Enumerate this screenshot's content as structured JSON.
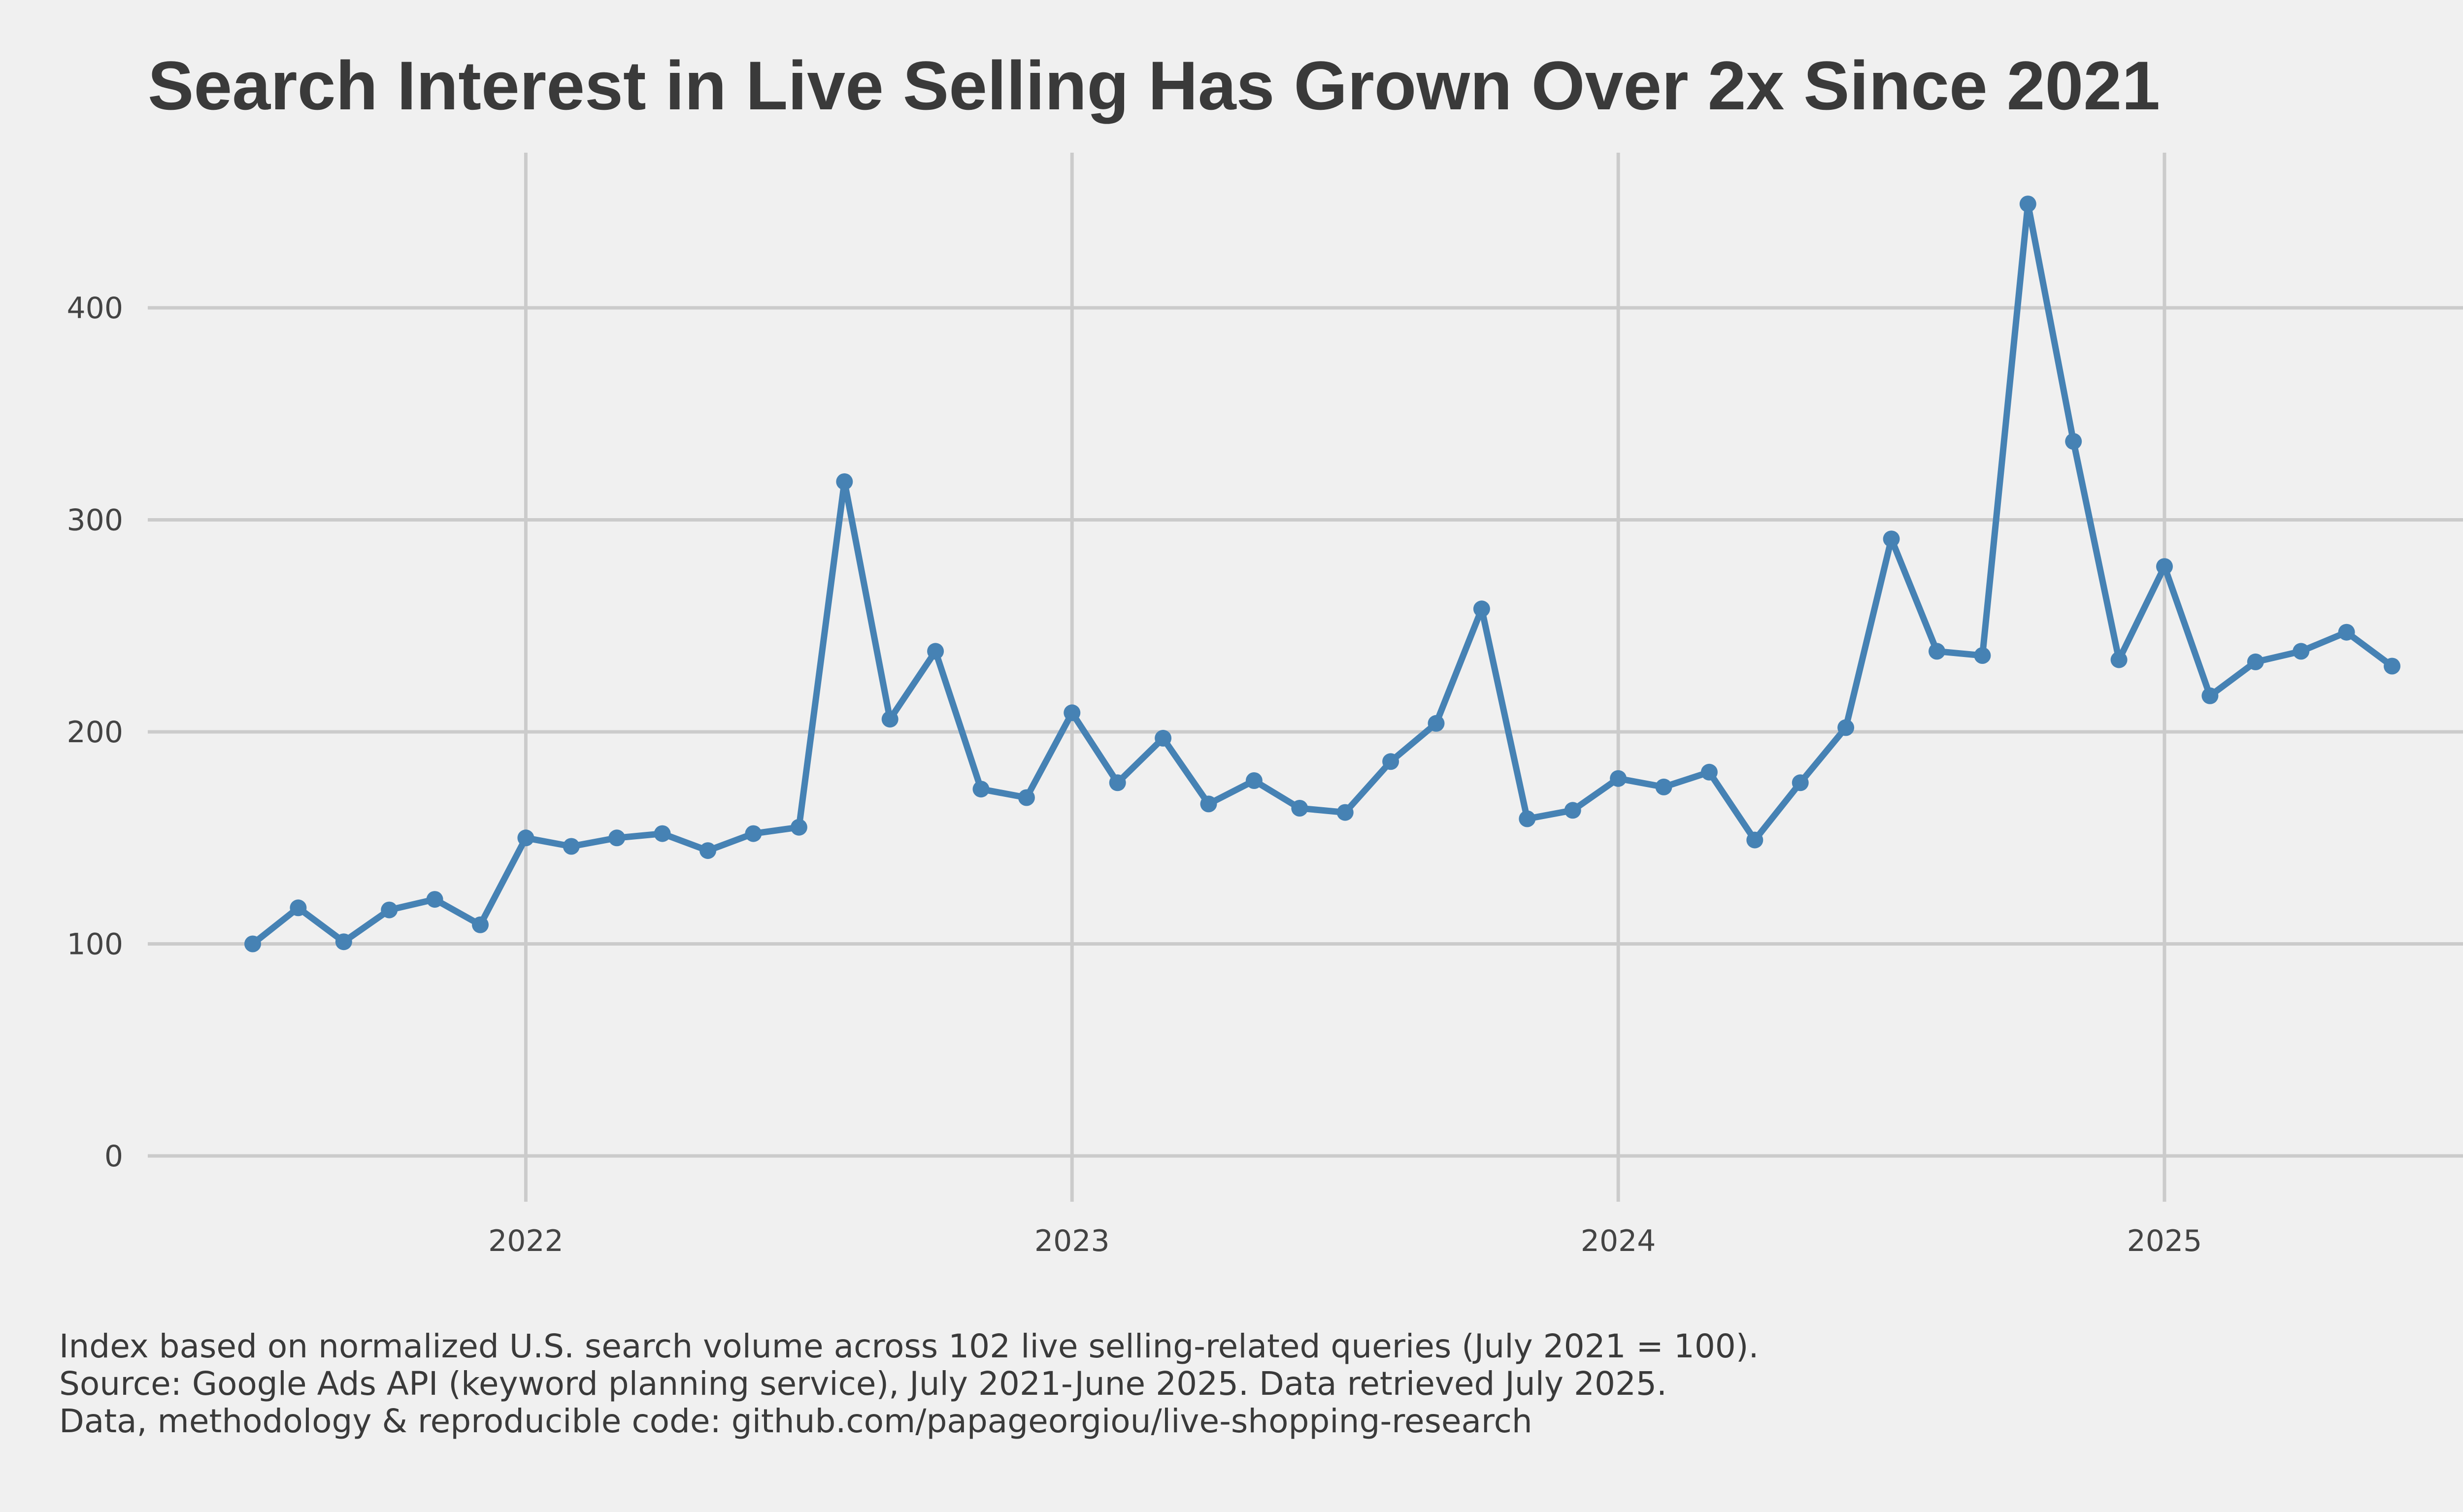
{
  "chart_data": {
    "type": "line",
    "title": "Search Interest in Live Selling Has Grown Over 2x Since 2021",
    "xlabel": "",
    "ylabel": "",
    "ylim": [
      0,
      450
    ],
    "xlim": [
      "2021-07",
      "2025-06"
    ],
    "y_ticks": [
      0,
      100,
      200,
      300,
      400
    ],
    "x_tick_labels": [
      "2022",
      "2023",
      "2024",
      "2025"
    ],
    "x_tick_dates": [
      "2022-01",
      "2023-01",
      "2024-01",
      "2025-01"
    ],
    "grid": true,
    "legend": "none",
    "line_color": "#4682b4",
    "series": [
      {
        "x": [
          "2021-07",
          "2021-08",
          "2021-09",
          "2021-10",
          "2021-11",
          "2021-12",
          "2022-01",
          "2022-02",
          "2022-03",
          "2022-04",
          "2022-05",
          "2022-06",
          "2022-07",
          "2022-08",
          "2022-09",
          "2022-10",
          "2022-11",
          "2022-12",
          "2023-01",
          "2023-02",
          "2023-03",
          "2023-04",
          "2023-05",
          "2023-06",
          "2023-07",
          "2023-08",
          "2023-09",
          "2023-10",
          "2023-11",
          "2023-12",
          "2024-01",
          "2024-02",
          "2024-03",
          "2024-04",
          "2024-05",
          "2024-06",
          "2024-07",
          "2024-08",
          "2024-09",
          "2024-10",
          "2024-11",
          "2024-12",
          "2025-01",
          "2025-02",
          "2025-03",
          "2025-04",
          "2025-05",
          "2025-06"
        ],
        "values": [
          100,
          117,
          101,
          116,
          121,
          109,
          150,
          146,
          150,
          152,
          144,
          152,
          155,
          318,
          206,
          238,
          173,
          169,
          209,
          176,
          197,
          166,
          177,
          164,
          162,
          186,
          204,
          258,
          159,
          163,
          178,
          174,
          181,
          149,
          176,
          202,
          291,
          238,
          236,
          449,
          337,
          234,
          278,
          217,
          233,
          238,
          247,
          231
        ]
      }
    ]
  },
  "caption": {
    "line1": "Index based on normalized U.S. search volume across 102 live selling-related queries (July 2021 = 100).",
    "line2": "Source: Google Ads API (keyword planning service), July 2021-June 2025. Data retrieved July 2025.",
    "line3": "Data, methodology & reproducible code: github.com/papageorgiou/live-shopping-research"
  }
}
